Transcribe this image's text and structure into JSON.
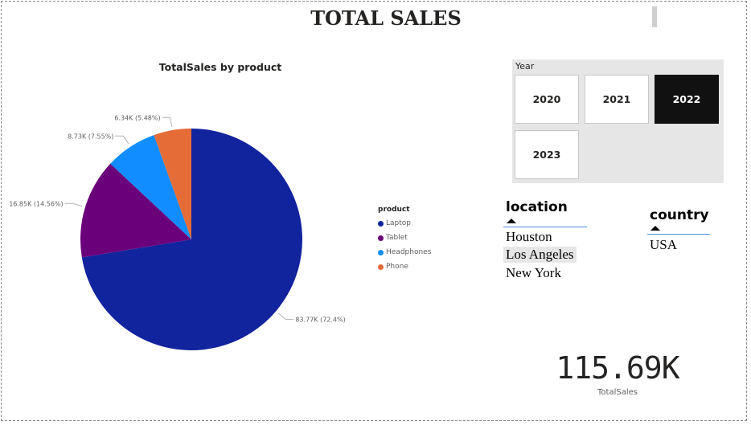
{
  "page": {
    "title": "TOTAL SALES"
  },
  "chart_data": {
    "type": "pie",
    "title": "TotalSales by product",
    "legend_title": "product",
    "legend_position": "right",
    "slices": [
      {
        "label": "Laptop",
        "value": 83.77,
        "percent": 72.4,
        "display": "83.77K (72.4%)",
        "color": "#12239E"
      },
      {
        "label": "Tablet",
        "value": 16.85,
        "percent": 14.56,
        "display": "16.85K (14.56%)",
        "color": "#6B007B"
      },
      {
        "label": "Headphones",
        "value": 8.73,
        "percent": 7.55,
        "display": "8.73K (7.55%)",
        "color": "#118DFF"
      },
      {
        "label": "Phone",
        "value": 6.34,
        "percent": 5.48,
        "display": "6.34K (5.48%)",
        "color": "#E66C37"
      }
    ]
  },
  "year_slicer": {
    "label": "Year",
    "options": [
      {
        "label": "2020",
        "selected": false
      },
      {
        "label": "2021",
        "selected": false
      },
      {
        "label": "2022",
        "selected": true
      },
      {
        "label": "2023",
        "selected": false
      }
    ]
  },
  "location_slicer": {
    "title": "location",
    "options": [
      "Houston",
      "Los Angeles",
      "New York"
    ],
    "highlighted": "Los Angeles"
  },
  "country_slicer": {
    "title": "country",
    "options": [
      "USA"
    ]
  },
  "kpi": {
    "value": "115.69K",
    "label": "TotalSales"
  }
}
